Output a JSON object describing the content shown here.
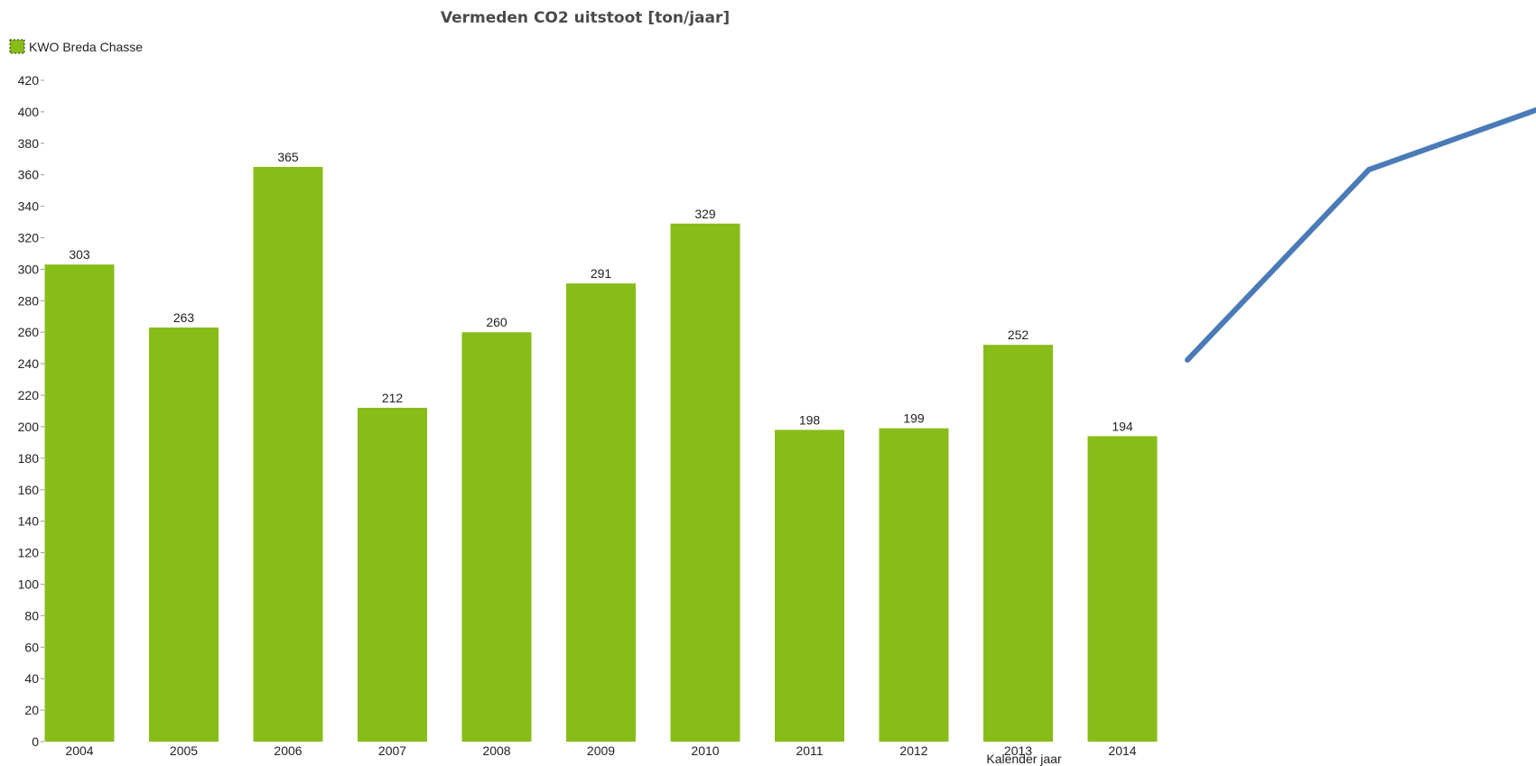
{
  "chart_data": {
    "type": "bar",
    "title": "Vermeden CO2 uitstoot [ton/jaar]",
    "xlabel": "Kalender jaar",
    "ylabel": "",
    "categories": [
      "2004",
      "2005",
      "2006",
      "2007",
      "2008",
      "2009",
      "2010",
      "2011",
      "2012",
      "2013",
      "2014"
    ],
    "series": [
      {
        "name": "KWO Breda Chasse",
        "values": [
          303,
          263,
          365,
          212,
          260,
          291,
          329,
          198,
          199,
          252,
          194
        ]
      }
    ],
    "ylim": [
      0,
      420
    ],
    "yticks": [
      0,
      20,
      40,
      60,
      80,
      100,
      120,
      140,
      160,
      180,
      200,
      220,
      240,
      260,
      280,
      300,
      320,
      340,
      360,
      380,
      400,
      420
    ],
    "data_labels": [
      "303",
      "263",
      "365",
      "212",
      "260",
      "291",
      "329",
      "198",
      "199",
      "252",
      "194"
    ],
    "grid": false,
    "legend_position": "top-left"
  },
  "colors": {
    "bar": "#88bc19",
    "overlay_line": "#4a7bb7"
  }
}
